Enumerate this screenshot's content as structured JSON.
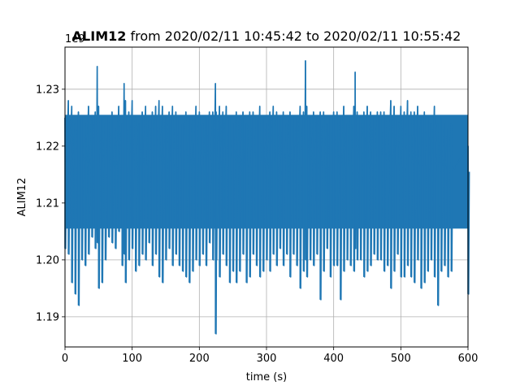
{
  "chart_data": {
    "type": "line",
    "title_bold": "ALIM12",
    "title_rest": " from 2020/02/11 10:45:42 to 2020/02/11 10:55:42",
    "xlabel": "time (s)",
    "ylabel": "ALIM12",
    "offset_label": "1e9",
    "xlim": [
      0,
      600
    ],
    "ylim": [
      1.1847,
      1.2374
    ],
    "xticks": [
      0,
      100,
      200,
      300,
      400,
      500,
      600
    ],
    "yticks": [
      1.19,
      1.2,
      1.21,
      1.22,
      1.23
    ],
    "ytick_labels": [
      "1.19",
      "1.20",
      "1.21",
      "1.22",
      "1.23"
    ],
    "grid": true,
    "series": [
      {
        "color": "#1f77b4",
        "band_center": 1.2155,
        "typical_low": 1.2055,
        "typical_high": 1.2255,
        "x": [
          0,
          5,
          10,
          15,
          20,
          25,
          30,
          35,
          40,
          45,
          48,
          50,
          55,
          60,
          65,
          70,
          75,
          80,
          85,
          88,
          90,
          95,
          100,
          105,
          110,
          115,
          120,
          125,
          130,
          135,
          140,
          145,
          150,
          155,
          160,
          165,
          170,
          175,
          180,
          185,
          190,
          195,
          200,
          205,
          210,
          215,
          220,
          224,
          225,
          230,
          235,
          240,
          245,
          250,
          255,
          260,
          265,
          270,
          275,
          280,
          285,
          290,
          295,
          300,
          305,
          310,
          315,
          320,
          325,
          330,
          335,
          340,
          345,
          350,
          355,
          358,
          360,
          365,
          370,
          375,
          380,
          385,
          390,
          395,
          400,
          405,
          410,
          415,
          420,
          425,
          430,
          432,
          435,
          440,
          445,
          450,
          455,
          460,
          465,
          470,
          475,
          480,
          485,
          490,
          495,
          500,
          505,
          510,
          515,
          520,
          525,
          530,
          535,
          540,
          545,
          550,
          555,
          560,
          565,
          570,
          575,
          600
        ],
        "y_high": [
          1.225,
          1.228,
          1.227,
          1.224,
          1.226,
          1.225,
          1.224,
          1.227,
          1.225,
          1.226,
          1.234,
          1.227,
          1.225,
          1.224,
          1.225,
          1.226,
          1.223,
          1.227,
          1.224,
          1.231,
          1.228,
          1.226,
          1.228,
          1.225,
          1.224,
          1.226,
          1.227,
          1.225,
          1.226,
          1.227,
          1.228,
          1.227,
          1.225,
          1.226,
          1.227,
          1.226,
          1.225,
          1.224,
          1.226,
          1.225,
          1.225,
          1.227,
          1.226,
          1.224,
          1.225,
          1.226,
          1.226,
          1.231,
          1.226,
          1.227,
          1.226,
          1.227,
          1.225,
          1.224,
          1.226,
          1.225,
          1.226,
          1.224,
          1.226,
          1.226,
          1.225,
          1.227,
          1.225,
          1.224,
          1.226,
          1.227,
          1.226,
          1.225,
          1.226,
          1.224,
          1.226,
          1.225,
          1.225,
          1.227,
          1.226,
          1.235,
          1.227,
          1.225,
          1.226,
          1.225,
          1.226,
          1.226,
          1.224,
          1.225,
          1.226,
          1.226,
          1.225,
          1.227,
          1.224,
          1.225,
          1.227,
          1.233,
          1.226,
          1.225,
          1.226,
          1.227,
          1.226,
          1.225,
          1.226,
          1.226,
          1.226,
          1.225,
          1.228,
          1.227,
          1.225,
          1.227,
          1.226,
          1.228,
          1.226,
          1.226,
          1.227,
          1.225,
          1.226,
          1.225,
          1.224,
          1.227,
          1.224,
          1.225,
          1.224,
          1.223,
          1.224,
          1.22
        ],
        "y_low": [
          1.202,
          1.201,
          1.196,
          1.194,
          1.192,
          1.2,
          1.199,
          1.201,
          1.204,
          1.202,
          1.203,
          1.195,
          1.196,
          1.2,
          1.204,
          1.203,
          1.202,
          1.205,
          1.199,
          1.201,
          1.196,
          1.2,
          1.202,
          1.198,
          1.199,
          1.201,
          1.2,
          1.203,
          1.199,
          1.201,
          1.197,
          1.196,
          1.2,
          1.202,
          1.199,
          1.201,
          1.199,
          1.198,
          1.197,
          1.196,
          1.198,
          1.2,
          1.199,
          1.201,
          1.199,
          1.203,
          1.2,
          1.187,
          1.2,
          1.197,
          1.201,
          1.199,
          1.196,
          1.198,
          1.196,
          1.198,
          1.201,
          1.196,
          1.197,
          1.201,
          1.199,
          1.197,
          1.198,
          1.2,
          1.198,
          1.201,
          1.199,
          1.202,
          1.199,
          1.201,
          1.197,
          1.201,
          1.199,
          1.195,
          1.198,
          1.2,
          1.197,
          1.2,
          1.199,
          1.201,
          1.193,
          1.198,
          1.202,
          1.197,
          1.199,
          1.199,
          1.193,
          1.198,
          1.2,
          1.199,
          1.198,
          1.202,
          1.2,
          1.2,
          1.197,
          1.198,
          1.199,
          1.201,
          1.2,
          1.2,
          1.198,
          1.199,
          1.195,
          1.198,
          1.201,
          1.197,
          1.197,
          1.199,
          1.197,
          1.196,
          1.2,
          1.195,
          1.196,
          1.198,
          1.2,
          1.197,
          1.192,
          1.198,
          1.199,
          1.197,
          1.198,
          1.194
        ]
      }
    ]
  }
}
